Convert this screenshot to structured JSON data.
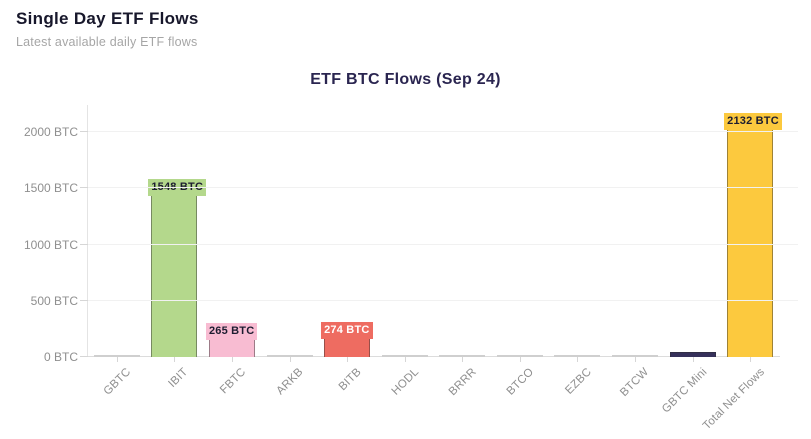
{
  "header": {
    "title": "Single Day ETF Flows",
    "subtitle": "Latest available daily ETF flows"
  },
  "chart_data": {
    "type": "bar",
    "title": "ETF BTC Flows (Sep 24)",
    "categories": [
      "GBTC",
      "IBIT",
      "FBTC",
      "ARKB",
      "BITB",
      "HODL",
      "BRRR",
      "BTCO",
      "EZBC",
      "BTCW",
      "GBTC Mini",
      "Total Net Flows"
    ],
    "values": [
      0,
      1548,
      265,
      0,
      274,
      0,
      0,
      0,
      0,
      0,
      45,
      2132
    ],
    "unit": "BTC",
    "xlabel": "",
    "ylabel": "",
    "ylim": [
      0,
      2240
    ],
    "yticks": [
      0,
      500,
      1000,
      1500,
      2000
    ],
    "ytick_labels": [
      "0 BTC",
      "500 BTC",
      "1000 BTC",
      "1500 BTC",
      "2000 BTC"
    ],
    "grid": true,
    "legend": false,
    "bars": [
      {
        "category": "GBTC",
        "value": 0,
        "label": "",
        "color": "#cfcfcf",
        "label_color": "#1c1c30"
      },
      {
        "category": "IBIT",
        "value": 1548,
        "label": "1548 BTC",
        "color": "#b4d88c",
        "label_color": "#1c1c30"
      },
      {
        "category": "FBTC",
        "value": 265,
        "label": "265 BTC",
        "color": "#f8bcd2",
        "label_color": "#1c1c30"
      },
      {
        "category": "ARKB",
        "value": 0,
        "label": "",
        "color": "#cfcfcf",
        "label_color": "#1c1c30"
      },
      {
        "category": "BITB",
        "value": 274,
        "label": "274 BTC",
        "color": "#ee6c61",
        "label_color": "#ffffff"
      },
      {
        "category": "HODL",
        "value": 0,
        "label": "",
        "color": "#cfcfcf",
        "label_color": "#1c1c30"
      },
      {
        "category": "BRRR",
        "value": 0,
        "label": "",
        "color": "#cfcfcf",
        "label_color": "#1c1c30"
      },
      {
        "category": "BTCO",
        "value": 0,
        "label": "",
        "color": "#cfcfcf",
        "label_color": "#1c1c30"
      },
      {
        "category": "EZBC",
        "value": 0,
        "label": "",
        "color": "#cfcfcf",
        "label_color": "#1c1c30"
      },
      {
        "category": "BTCW",
        "value": 0,
        "label": "",
        "color": "#cfcfcf",
        "label_color": "#1c1c30"
      },
      {
        "category": "GBTC Mini",
        "value": 45,
        "label": "",
        "color": "#35305a",
        "label_color": "#1c1c30"
      },
      {
        "category": "Total Net Flows",
        "value": 2132,
        "label": "2132 BTC",
        "color": "#fcc93e",
        "label_color": "#1c1c30"
      }
    ],
    "colors": {
      "grid": "#f1f1f1",
      "axis": "#dcdcdc",
      "tick_text": "#8f8f8f",
      "title_text": "#2a2550"
    }
  }
}
